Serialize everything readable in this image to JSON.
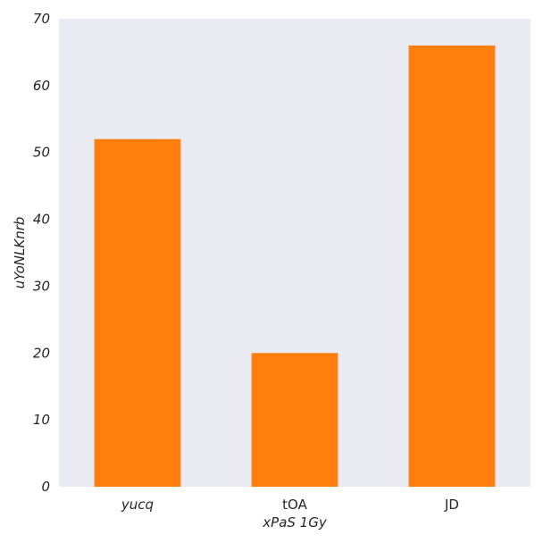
{
  "chart_data": {
    "type": "bar",
    "categories": [
      "yucq",
      "tOA",
      "JD"
    ],
    "category_italic": [
      true,
      false,
      false
    ],
    "values": [
      52,
      20,
      66
    ],
    "title": "",
    "xlabel": "xPaS 1Gy",
    "ylabel": "uYoNLKnrb",
    "ylim": [
      0,
      70
    ],
    "yticks": [
      0,
      10,
      20,
      30,
      40,
      50,
      60,
      70
    ],
    "grid": false,
    "colors": {
      "bar": "#ff7f0e",
      "plot_background": "#eaeaf2",
      "text": "#262626"
    }
  }
}
